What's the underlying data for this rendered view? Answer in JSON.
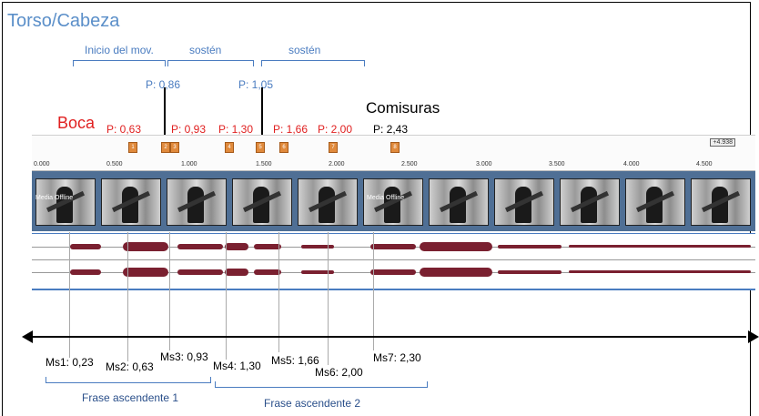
{
  "title": "Torso/Cabeza",
  "top_labels": {
    "inicio": "Inicio del  mov.",
    "sosten1": "sostén",
    "sosten2": "sostén",
    "p1": "P: 0,86",
    "p2": "P: 1,05"
  },
  "boca": {
    "label": "Boca",
    "points": [
      "P: 0,63",
      "P: 0,93",
      "P: 1,30",
      "P: 1,66",
      "P: 2,00"
    ]
  },
  "comisuras": {
    "label": "Comisuras",
    "point": "P: 2,43"
  },
  "ruler": {
    "ticks": [
      "0.000",
      "0.500",
      "1.000",
      "1.500",
      "2.000",
      "2.500",
      "3.000",
      "3.500",
      "4.000",
      "4.500"
    ],
    "end_badge": "+4.938",
    "markers": [
      "1",
      "2",
      "3",
      "4",
      "5",
      "6",
      "7",
      "8"
    ]
  },
  "film": {
    "watermark": "Media Offline"
  },
  "ms_labels": [
    "Ms1: 0,23",
    "Ms2: 0,63",
    "Ms3: 0,93",
    "Ms4: 1,30",
    "Ms5: 1,66",
    "Ms6: 2,00",
    "Ms7: 2,30"
  ],
  "phrases": [
    "Frase ascendente 1",
    "Frase ascendente 2"
  ],
  "colors": {
    "blue": "#4a7cc0",
    "red": "#e02020",
    "marker": "#e08a3c",
    "wave": "#7a2030"
  }
}
